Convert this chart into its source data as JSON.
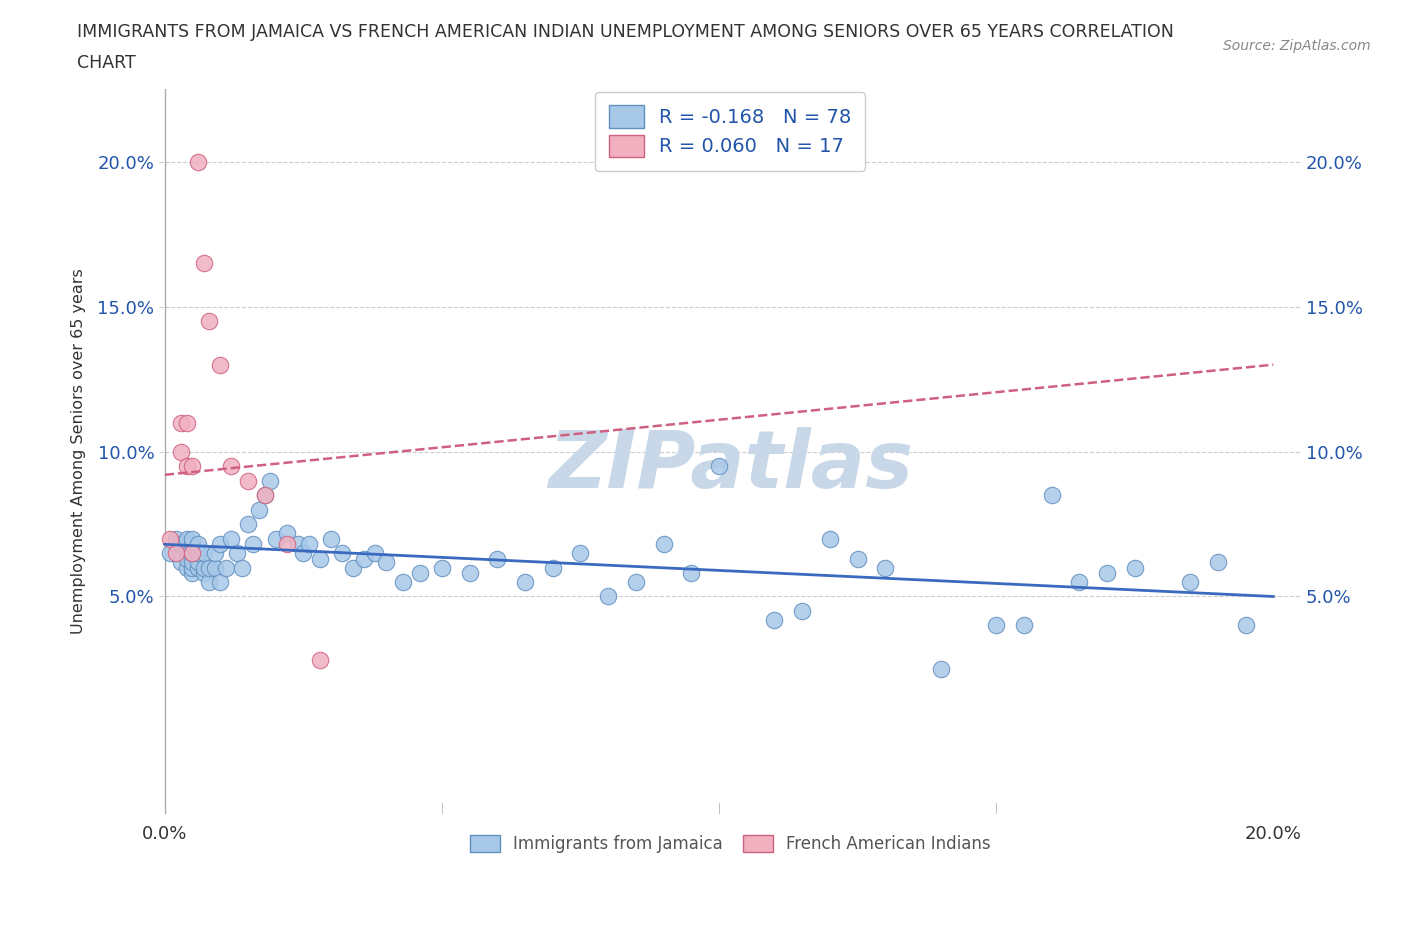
{
  "title_line1": "IMMIGRANTS FROM JAMAICA VS FRENCH AMERICAN INDIAN UNEMPLOYMENT AMONG SENIORS OVER 65 YEARS CORRELATION",
  "title_line2": "CHART",
  "source": "Source: ZipAtlas.com",
  "ylabel": "Unemployment Among Seniors over 65 years",
  "xlim": [
    -0.001,
    0.205
  ],
  "ylim": [
    -0.025,
    0.225
  ],
  "xticks": [
    0.0,
    0.05,
    0.1,
    0.15,
    0.2
  ],
  "xticklabels": [
    "0.0%",
    "",
    "",
    "",
    "20.0%"
  ],
  "yticks": [
    0.05,
    0.1,
    0.15,
    0.2
  ],
  "yticklabels": [
    "5.0%",
    "10.0%",
    "15.0%",
    "20.0%"
  ],
  "legend_label1": "Immigrants from Jamaica",
  "legend_label2": "French American Indians",
  "color_blue": "#a8c8e8",
  "color_pink": "#f0b0c0",
  "color_blue_edge": "#6090c0",
  "color_pink_edge": "#d06080",
  "color_line_blue": "#3a6abf",
  "color_line_pink": "#d06080",
  "watermark_color": "#c8d8e8",
  "background_color": "#ffffff",
  "grid_color": "#cccccc",
  "tick_color": "#2255aa",
  "jamaica_x": [
    0.001,
    0.002,
    0.002,
    0.003,
    0.003,
    0.003,
    0.004,
    0.004,
    0.004,
    0.004,
    0.005,
    0.005,
    0.005,
    0.005,
    0.005,
    0.005,
    0.006,
    0.006,
    0.006,
    0.006,
    0.007,
    0.007,
    0.007,
    0.008,
    0.008,
    0.009,
    0.009,
    0.01,
    0.01,
    0.011,
    0.012,
    0.013,
    0.014,
    0.015,
    0.016,
    0.017,
    0.018,
    0.019,
    0.02,
    0.022,
    0.024,
    0.025,
    0.026,
    0.028,
    0.03,
    0.032,
    0.034,
    0.036,
    0.038,
    0.04,
    0.043,
    0.046,
    0.05,
    0.055,
    0.06,
    0.065,
    0.07,
    0.075,
    0.08,
    0.085,
    0.09,
    0.095,
    0.1,
    0.11,
    0.115,
    0.12,
    0.125,
    0.13,
    0.14,
    0.15,
    0.155,
    0.16,
    0.165,
    0.17,
    0.175,
    0.185,
    0.19,
    0.195
  ],
  "jamaica_y": [
    0.065,
    0.068,
    0.07,
    0.062,
    0.065,
    0.068,
    0.06,
    0.063,
    0.066,
    0.07,
    0.058,
    0.06,
    0.062,
    0.065,
    0.068,
    0.07,
    0.06,
    0.062,
    0.065,
    0.068,
    0.058,
    0.06,
    0.065,
    0.055,
    0.06,
    0.06,
    0.065,
    0.055,
    0.068,
    0.06,
    0.07,
    0.065,
    0.06,
    0.075,
    0.068,
    0.08,
    0.085,
    0.09,
    0.07,
    0.072,
    0.068,
    0.065,
    0.068,
    0.063,
    0.07,
    0.065,
    0.06,
    0.063,
    0.065,
    0.062,
    0.055,
    0.058,
    0.06,
    0.058,
    0.063,
    0.055,
    0.06,
    0.065,
    0.05,
    0.055,
    0.068,
    0.058,
    0.095,
    0.042,
    0.045,
    0.07,
    0.063,
    0.06,
    0.025,
    0.04,
    0.04,
    0.085,
    0.055,
    0.058,
    0.06,
    0.055,
    0.062,
    0.04
  ],
  "french_x": [
    0.001,
    0.002,
    0.003,
    0.003,
    0.004,
    0.004,
    0.005,
    0.005,
    0.006,
    0.007,
    0.008,
    0.01,
    0.012,
    0.015,
    0.018,
    0.022,
    0.028
  ],
  "french_y": [
    0.07,
    0.065,
    0.1,
    0.11,
    0.095,
    0.11,
    0.095,
    0.065,
    0.2,
    0.165,
    0.145,
    0.13,
    0.095,
    0.09,
    0.085,
    0.068,
    0.028
  ],
  "trendline_jamaica_x0": 0.0,
  "trendline_jamaica_x1": 0.2,
  "trendline_jamaica_y0": 0.068,
  "trendline_jamaica_y1": 0.05,
  "trendline_french_x0": 0.0,
  "trendline_french_x1": 0.2,
  "trendline_french_y0": 0.092,
  "trendline_french_y1": 0.13
}
